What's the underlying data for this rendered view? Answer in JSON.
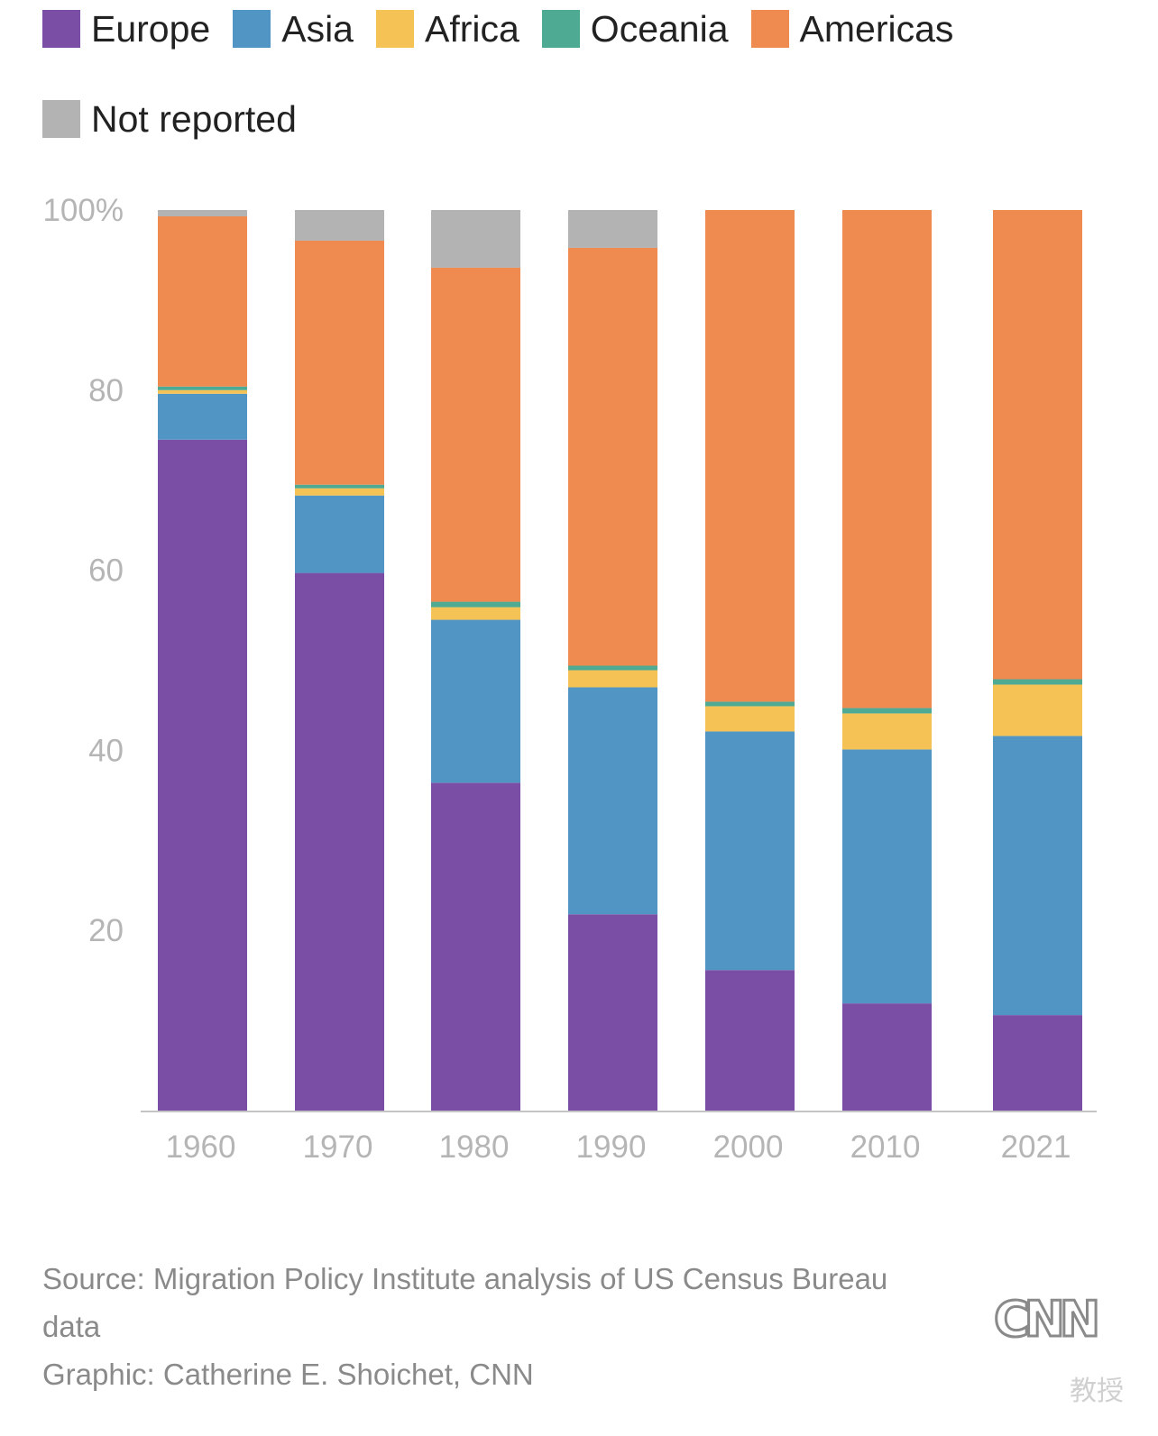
{
  "legend": [
    {
      "label": "Europe",
      "color": "#7b4ea6"
    },
    {
      "label": "Asia",
      "color": "#5095c4"
    },
    {
      "label": "Africa",
      "color": "#f5c255"
    },
    {
      "label": "Oceania",
      "color": "#4faa93"
    },
    {
      "label": "Americas",
      "color": "#ef8a51"
    },
    {
      "label": "Not reported",
      "color": "#b3b3b3"
    }
  ],
  "chart_data": {
    "type": "bar",
    "stacked": true,
    "categories": [
      "1960",
      "1970",
      "1980",
      "1990",
      "2000",
      "2010",
      "2021"
    ],
    "y_tick_labels": [
      "100%",
      "80",
      "60",
      "40",
      "20"
    ],
    "y_ticks": [
      100,
      80,
      60,
      40,
      20
    ],
    "ylim": [
      0,
      100
    ],
    "grid": false,
    "legend_position": "top",
    "series": [
      {
        "name": "Europe",
        "color": "#7b4ea6",
        "values": [
          74.5,
          59.7,
          36.4,
          21.8,
          15.6,
          11.9,
          10.6
        ]
      },
      {
        "name": "Asia",
        "color": "#5095c4",
        "values": [
          5.1,
          8.6,
          18.1,
          25.2,
          26.5,
          28.2,
          31.0
        ]
      },
      {
        "name": "Africa",
        "color": "#f5c255",
        "values": [
          0.4,
          0.8,
          1.4,
          1.9,
          2.8,
          4.0,
          5.7
        ]
      },
      {
        "name": "Oceania",
        "color": "#4faa93",
        "values": [
          0.4,
          0.4,
          0.6,
          0.5,
          0.5,
          0.6,
          0.6
        ]
      },
      {
        "name": "Americas",
        "color": "#ef8a51",
        "values": [
          18.9,
          27.1,
          37.1,
          46.4,
          54.6,
          55.3,
          52.1
        ]
      },
      {
        "name": "Not reported",
        "color": "#b3b3b3",
        "values": [
          0.7,
          3.4,
          6.4,
          4.2,
          0,
          0,
          0
        ]
      }
    ]
  },
  "footer": {
    "source": "Source: Migration Policy Institute analysis of US Census Bureau",
    "source_cont": "data",
    "credit": "Graphic: Catherine E. Shoichet, CNN"
  },
  "logo": {
    "text": "CNN"
  },
  "watermark": {
    "text": "教授"
  }
}
